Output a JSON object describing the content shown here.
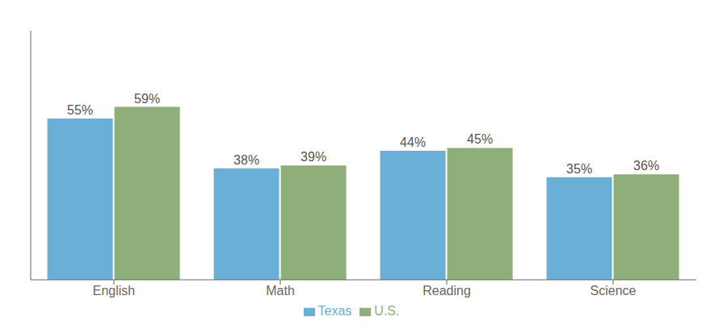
{
  "chart_data": {
    "type": "bar",
    "categories": [
      "English",
      "Math",
      "Reading",
      "Science"
    ],
    "series": [
      {
        "name": "Texas",
        "color": "#6AAFD6",
        "values": [
          55,
          38,
          44,
          35
        ],
        "value_labels": [
          "55%",
          "38%",
          "44%",
          "35%"
        ]
      },
      {
        "name": "U.S.",
        "color": "#8EAF7A",
        "values": [
          59,
          39,
          45,
          36
        ],
        "value_labels": [
          "59%",
          "39%",
          "45%",
          "36%"
        ]
      }
    ],
    "ylim": [
      0,
      85
    ],
    "data_labels": true,
    "tick_labels": "x",
    "legend": "bottom",
    "grid": false
  }
}
